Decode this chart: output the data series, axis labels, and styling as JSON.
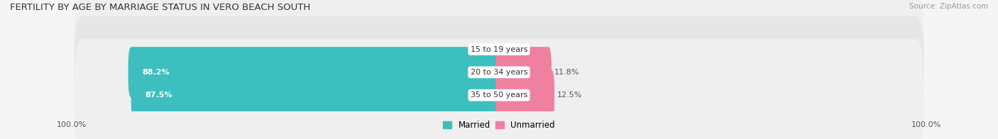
{
  "title": "FERTILITY BY AGE BY MARRIAGE STATUS IN VERO BEACH SOUTH",
  "source": "Source: ZipAtlas.com",
  "rows": [
    {
      "label": "15 to 19 years",
      "married": 0.0,
      "unmarried": 0.0
    },
    {
      "label": "20 to 34 years",
      "married": 88.2,
      "unmarried": 11.8
    },
    {
      "label": "35 to 50 years",
      "married": 87.5,
      "unmarried": 12.5
    }
  ],
  "married_color": "#3dbfbf",
  "unmarried_color": "#f080a0",
  "row_bg_color_odd": "#efefef",
  "row_bg_color_even": "#e6e6e6",
  "title_fontsize": 9.5,
  "source_fontsize": 7.5,
  "tick_fontsize": 8,
  "bar_label_fontsize": 8,
  "category_label_fontsize": 8,
  "legend_fontsize": 8.5,
  "left_axis_label": "100.0%",
  "right_axis_label": "100.0%",
  "fig_width": 14.06,
  "fig_height": 1.96,
  "dpi": 100
}
